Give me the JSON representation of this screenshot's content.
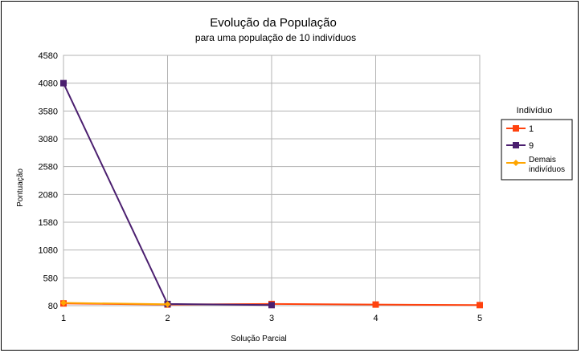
{
  "chart_data": {
    "type": "line",
    "title": "Evolução da População",
    "subtitle": "para uma população de 10 indivíduos",
    "xlabel": "Solução Parcial",
    "ylabel": "Pontuação",
    "categories": [
      "1",
      "2",
      "3",
      "4",
      "5"
    ],
    "y_ticks": [
      80,
      580,
      1080,
      1580,
      2080,
      2580,
      3080,
      3580,
      4080,
      4580
    ],
    "ylim": [
      80,
      4580
    ],
    "grid": true,
    "legend_title": "Indivíduo",
    "legend_position": "right",
    "series": [
      {
        "name": "1",
        "color": "#ff420e",
        "marker": "square",
        "values": [
          120,
          100,
          110,
          100,
          90
        ]
      },
      {
        "name": "9",
        "color": "#4b1f6f",
        "marker": "square",
        "values": [
          4080,
          110,
          90,
          null,
          null
        ]
      },
      {
        "name": "Demais indivíduos",
        "color": "#ffa500",
        "marker": "diamond",
        "values": [
          130,
          105,
          null,
          null,
          null
        ]
      }
    ]
  }
}
